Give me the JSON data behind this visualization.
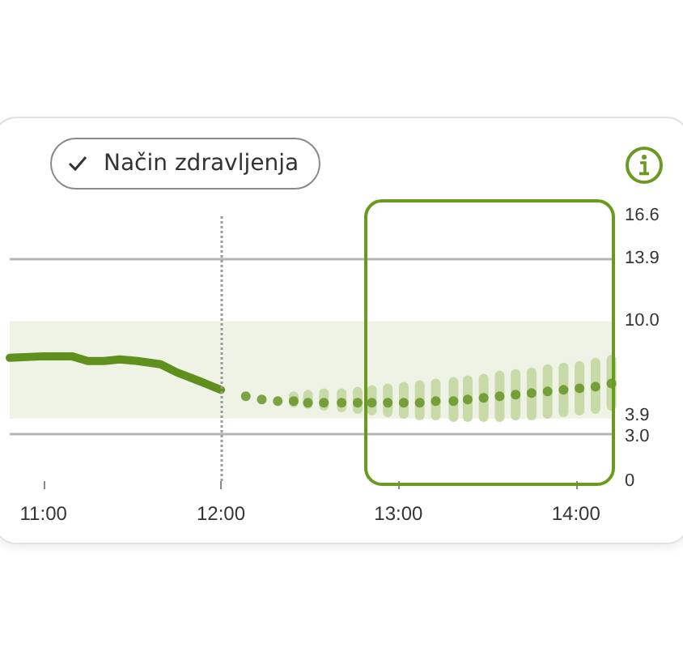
{
  "chart_data": {
    "type": "line",
    "annotations": [
      "Način zdravljenja"
    ],
    "xlim": [
      10.81,
      14.22
    ],
    "xticks": [
      {
        "value": 11,
        "label": "11:00"
      },
      {
        "value": 12,
        "label": "12:00"
      },
      {
        "value": 13,
        "label": "13:00"
      },
      {
        "value": 14,
        "label": "14:00"
      }
    ],
    "ylim": [
      0,
      16.6
    ],
    "yticks": [
      0,
      {
        "value": 3,
        "label": "3.0"
      },
      3.9,
      {
        "value": 10,
        "label": "10.0"
      },
      13.9,
      16.6
    ],
    "series": [
      {
        "color": "#5f8f1c",
        "line_style": "solid",
        "x": [
          10.81,
          11.0,
          11.16,
          11.25,
          11.34,
          11.43,
          11.53,
          11.66,
          11.75,
          11.89,
          12.0
        ],
        "values": [
          7.7,
          7.8,
          7.8,
          7.5,
          7.5,
          7.6,
          7.5,
          7.3,
          6.8,
          6.2,
          5.7
        ]
      },
      {
        "type": "scatter",
        "color": "#5f8f1c",
        "marker": "circle",
        "x": [
          12.14,
          12.23,
          12.32,
          12.41,
          12.49,
          12.58,
          12.68,
          12.77,
          12.85,
          12.94,
          13.03,
          13.12,
          13.21,
          13.31,
          13.39,
          13.48,
          13.57,
          13.66,
          13.75,
          13.84,
          13.93,
          14.02,
          14.11,
          14.2
        ],
        "values": [
          5.3,
          5.1,
          5.0,
          5.0,
          4.9,
          4.9,
          4.9,
          4.9,
          4.9,
          4.9,
          4.9,
          4.9,
          5.0,
          5.0,
          5.1,
          5.2,
          5.3,
          5.4,
          5.5,
          5.6,
          5.7,
          5.8,
          5.9,
          6.1
        ]
      },
      {
        "type": "bar",
        "color": "#c8daa8",
        "x": [
          12.41,
          12.49,
          12.58,
          12.68,
          12.77,
          12.85,
          12.94,
          13.03,
          13.12,
          13.21,
          13.31,
          13.39,
          13.48,
          13.57,
          13.66,
          13.75,
          13.84,
          13.93,
          14.02,
          14.11,
          14.2
        ],
        "base": [
          4.6,
          4.5,
          4.4,
          4.3,
          4.2,
          4.1,
          4.0,
          3.9,
          3.8,
          3.8,
          3.7,
          3.7,
          3.7,
          3.7,
          3.8,
          3.8,
          3.9,
          4.0,
          4.1,
          4.2,
          4.4
        ],
        "values": [
          1.0,
          1.2,
          1.4,
          1.5,
          1.7,
          1.9,
          2.1,
          2.3,
          2.5,
          2.6,
          2.8,
          2.9,
          3.0,
          3.2,
          3.2,
          3.3,
          3.4,
          3.4,
          3.4,
          3.5,
          3.5
        ]
      }
    ],
    "ref_lines": [
      {
        "axis": "y",
        "value": 13.9,
        "color": "#b5b5b5",
        "line_style": "solid"
      },
      {
        "axis": "y",
        "value": 3.0,
        "color": "#b5b5b5",
        "line_style": "solid"
      },
      {
        "axis": "x",
        "value": 12,
        "color": "#9a9a9a",
        "line_style": "dotted"
      }
    ],
    "bands": [
      {
        "axis": "y",
        "from": 3.9,
        "to": 10.0,
        "color": "#eff3e6"
      }
    ],
    "grid": false
  }
}
